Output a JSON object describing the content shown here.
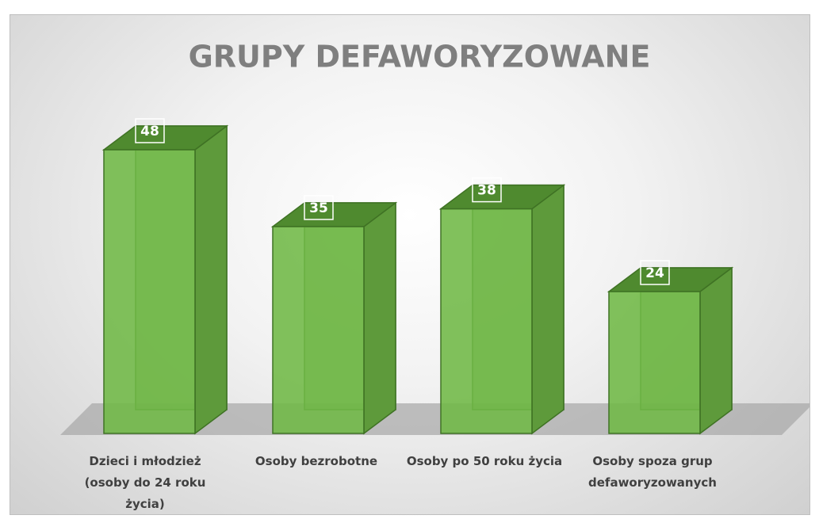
{
  "chart_data": {
    "type": "bar3d",
    "title": "GRUPY DEFAWORYZOWANE",
    "categories": [
      "Dzieci i młodzież (osoby do 24 roku życia)",
      "Osoby bezrobotne",
      "Osoby po 50 roku życia",
      "Osoby spoza grup defaworyzowanych"
    ],
    "values": [
      48,
      35,
      38,
      24
    ],
    "color": "#70b845"
  }
}
